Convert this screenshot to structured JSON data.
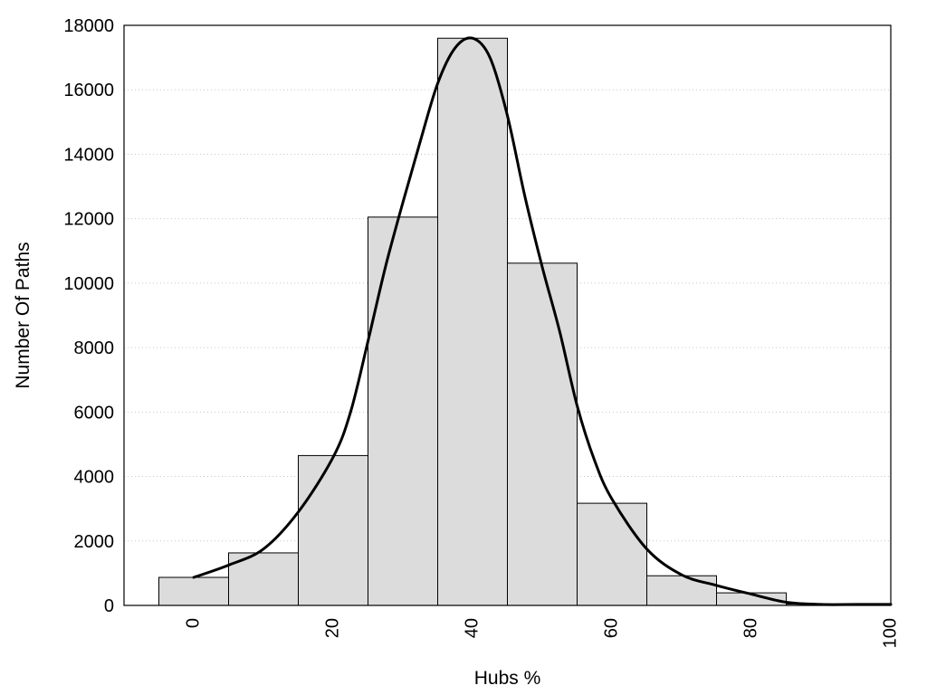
{
  "chart_data": {
    "type": "bar",
    "xlabel": "Hubs %",
    "ylabel": "Number Of Paths",
    "xlim": [
      -10,
      100
    ],
    "ylim": [
      0,
      18000
    ],
    "x_ticks": [
      0,
      20,
      40,
      60,
      80,
      100
    ],
    "y_ticks": [
      0,
      2000,
      4000,
      6000,
      8000,
      10000,
      12000,
      14000,
      16000,
      18000
    ],
    "grid": "horizontal dotted",
    "bin_width": 10,
    "bins": [
      {
        "center": 0,
        "value": 870
      },
      {
        "center": 10,
        "value": 1630
      },
      {
        "center": 20,
        "value": 4650
      },
      {
        "center": 30,
        "value": 12050
      },
      {
        "center": 40,
        "value": 17600
      },
      {
        "center": 50,
        "value": 10620
      },
      {
        "center": 60,
        "value": 3170
      },
      {
        "center": 70,
        "value": 920
      },
      {
        "center": 80,
        "value": 390
      },
      {
        "center": 90,
        "value": 40
      },
      {
        "center": 100,
        "value": 20
      }
    ],
    "density_curve": {
      "x": [
        0,
        5,
        10,
        15,
        20,
        22.5,
        25,
        27.5,
        30,
        32.5,
        35,
        37.5,
        40,
        42.5,
        45,
        47.5,
        50,
        52.5,
        55,
        57.5,
        60,
        65,
        70,
        75,
        80,
        85,
        90,
        95,
        100
      ],
      "y": [
        870,
        1250,
        1750,
        2900,
        4600,
        6000,
        8200,
        10500,
        12500,
        14400,
        16200,
        17300,
        17600,
        17000,
        15200,
        12700,
        10500,
        8500,
        6200,
        4500,
        3300,
        1750,
        950,
        620,
        350,
        100,
        30,
        30,
        30
      ]
    },
    "colors": {
      "bar_fill": "#dcdcdc",
      "bar_stroke": "#000000",
      "curve": "#000000",
      "grid": "#c8c8c8"
    }
  }
}
